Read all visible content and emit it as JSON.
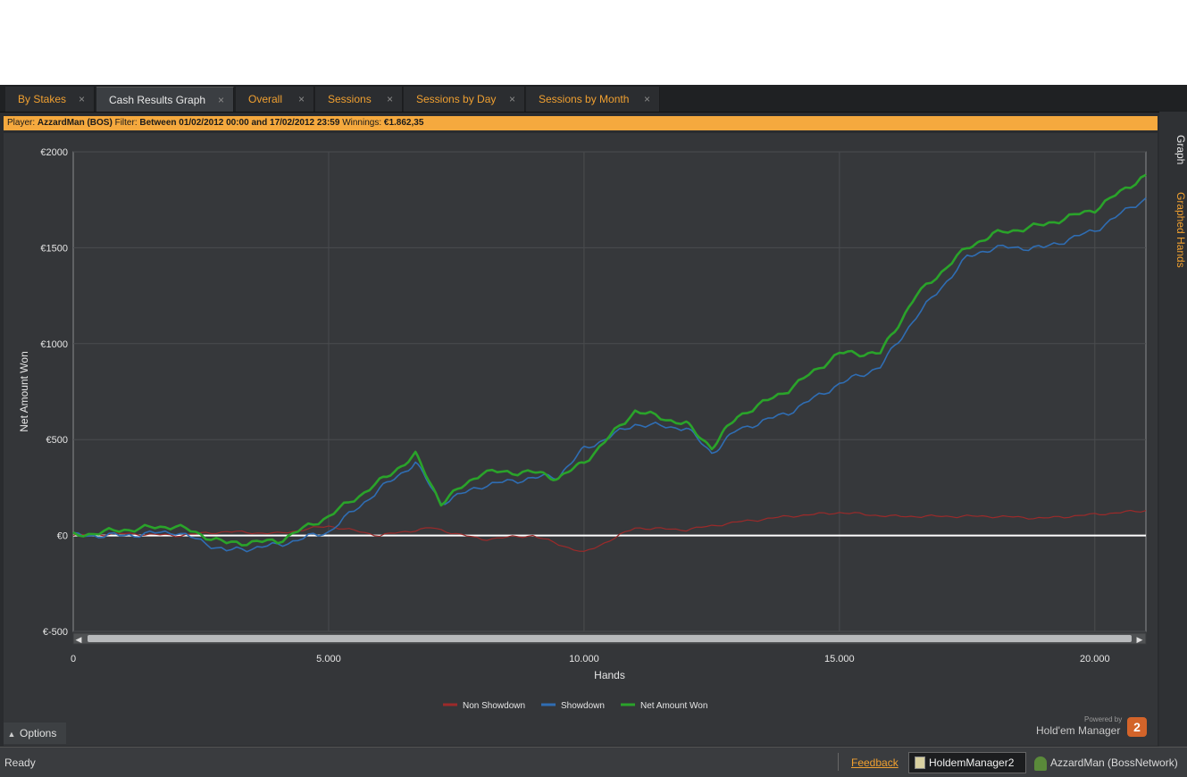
{
  "tabs": [
    {
      "label": "By Stakes",
      "close": "×",
      "active": false
    },
    {
      "label": "Cash Results Graph",
      "close": "×",
      "active": true
    },
    {
      "label": "Overall",
      "close": "×",
      "active": false
    },
    {
      "label": "Sessions",
      "close": "×",
      "active": false
    },
    {
      "label": "Sessions by Day",
      "close": "×",
      "active": false
    },
    {
      "label": "Sessions by Month",
      "close": "×",
      "active": false
    }
  ],
  "filter": {
    "player_label": "Player:",
    "player_value": "AzzardMan (BOS)",
    "filter_label": "Filter:",
    "filter_value": "Between 01/02/2012 00:00 and 17/02/2012 23:59",
    "winnings_label": "Winnings:",
    "winnings_value": "€1.862,35"
  },
  "side_tabs": [
    {
      "label": "Graph",
      "active": true
    },
    {
      "label": "Graphed Hands",
      "active": false
    }
  ],
  "options_label": "Options",
  "powered": {
    "by": "Powered by",
    "brand": "Hold'em Manager",
    "badge": "2"
  },
  "status": {
    "ready": "Ready",
    "feedback": "Feedback",
    "app": "HoldemManager2",
    "user": "AzzardMan (BossNetwork)"
  },
  "colors": {
    "non_showdown": "#9c2a2a",
    "showdown": "#2f6db3",
    "net_won": "#2aa32a",
    "accent": "#f0a030"
  },
  "chart_data": {
    "type": "line",
    "xlabel": "Hands",
    "ylabel": "Net Amount Won",
    "xlim": [
      0,
      21000
    ],
    "ylim": [
      -500,
      2000
    ],
    "x_ticks": [
      "0",
      "5.000",
      "10.000",
      "15.000",
      "20.000"
    ],
    "y_ticks": [
      "€2000",
      "€1500",
      "€1000",
      "€500",
      "€0",
      "€-500"
    ],
    "grid": true,
    "legend_position": "bottom",
    "series": [
      {
        "name": "Non Showdown",
        "x": [
          0,
          1000,
          2000,
          3000,
          4000,
          5000,
          6000,
          7000,
          8000,
          9000,
          10000,
          11000,
          12000,
          13000,
          14000,
          15000,
          16000,
          17000,
          18000,
          19000,
          20000,
          21000
        ],
        "values": [
          0,
          10,
          0,
          20,
          10,
          50,
          0,
          40,
          -20,
          0,
          -90,
          40,
          30,
          70,
          100,
          120,
          100,
          100,
          100,
          90,
          110,
          130
        ]
      },
      {
        "name": "Showdown",
        "x": [
          0,
          1000,
          2000,
          3000,
          4000,
          5000,
          6000,
          6700,
          7200,
          8000,
          9000,
          9500,
          10000,
          11000,
          12000,
          12500,
          13000,
          14000,
          15000,
          15800,
          16500,
          17500,
          18000,
          19000,
          20000,
          21000
        ],
        "values": [
          0,
          0,
          20,
          -80,
          -50,
          20,
          240,
          380,
          170,
          260,
          300,
          310,
          450,
          580,
          560,
          430,
          550,
          640,
          790,
          880,
          1140,
          1450,
          1500,
          1500,
          1590,
          1760
        ]
      },
      {
        "name": "Net Amount Won",
        "x": [
          0,
          1000,
          2000,
          3000,
          4000,
          5000,
          6000,
          6700,
          7200,
          8000,
          9000,
          9500,
          10000,
          11000,
          12000,
          12500,
          13000,
          14000,
          15000,
          15800,
          16500,
          17500,
          18000,
          19000,
          20000,
          21000
        ],
        "values": [
          0,
          30,
          50,
          -40,
          -30,
          100,
          280,
          420,
          170,
          330,
          330,
          300,
          380,
          650,
          580,
          460,
          620,
          760,
          950,
          950,
          1250,
          1500,
          1570,
          1620,
          1700,
          1880
        ]
      }
    ]
  }
}
